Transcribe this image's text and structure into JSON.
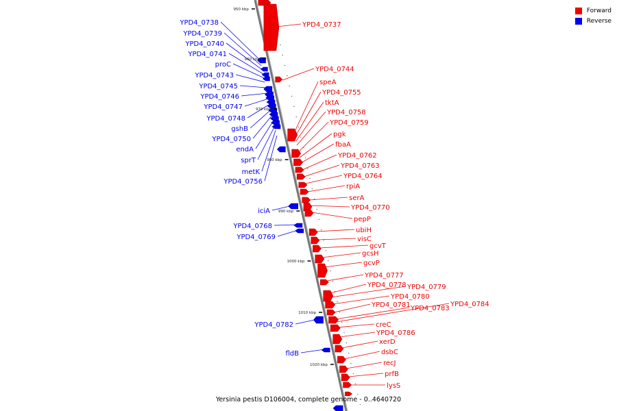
{
  "legend": [
    {
      "label": "Forward",
      "color": "#ee0000"
    },
    {
      "label": "Reverse",
      "color": "#0000ee"
    }
  ],
  "caption": "Yersinia pestis D106004, complete genome - 0..4640720",
  "colors": {
    "forward": "#ee0000",
    "reverse": "#0000ee",
    "backbone": "#888888"
  },
  "ticks": [
    "950 kbp",
    "960 kbp",
    "970 kbp",
    "980 kbp",
    "990 kbp",
    "1000 kbp",
    "1010 kbp",
    "1020 kbp"
  ],
  "forward_labels": [
    "YPD4_0737",
    "YPD4_0744",
    "speA",
    "YPD4_0755",
    "tktA",
    "YPD4_0758",
    "YPD4_0759",
    "pgk",
    "fbaA",
    "YPD4_0762",
    "YPD4_0763",
    "YPD4_0764",
    "rpiA",
    "serA",
    "YPD4_0770",
    "pepP",
    "ubiH",
    "visC",
    "gcvT",
    "gcsH",
    "gcvP",
    "YPD4_0777",
    "YPD4_0778",
    "YPD4_0779",
    "YPD4_0780",
    "YPD4_0781",
    "YPD4_0783",
    "YPD4_0784",
    "creC",
    "YPD4_0786",
    "xerD",
    "dsbC",
    "recJ",
    "prfB",
    "lysS"
  ],
  "reverse_labels": [
    "YPD4_0738",
    "YPD4_0739",
    "YPD4_0740",
    "YPD4_0741",
    "proC",
    "YPD4_0743",
    "YPD4_0745",
    "YPD4_0746",
    "YPD4_0747",
    "YPD4_0748",
    "gshB",
    "YPD4_0750",
    "endA",
    "sprT",
    "metK",
    "YPD4_0756",
    "iciA",
    "YPD4_0768",
    "YPD4_0769",
    "YPD4_0782",
    "fldB"
  ]
}
